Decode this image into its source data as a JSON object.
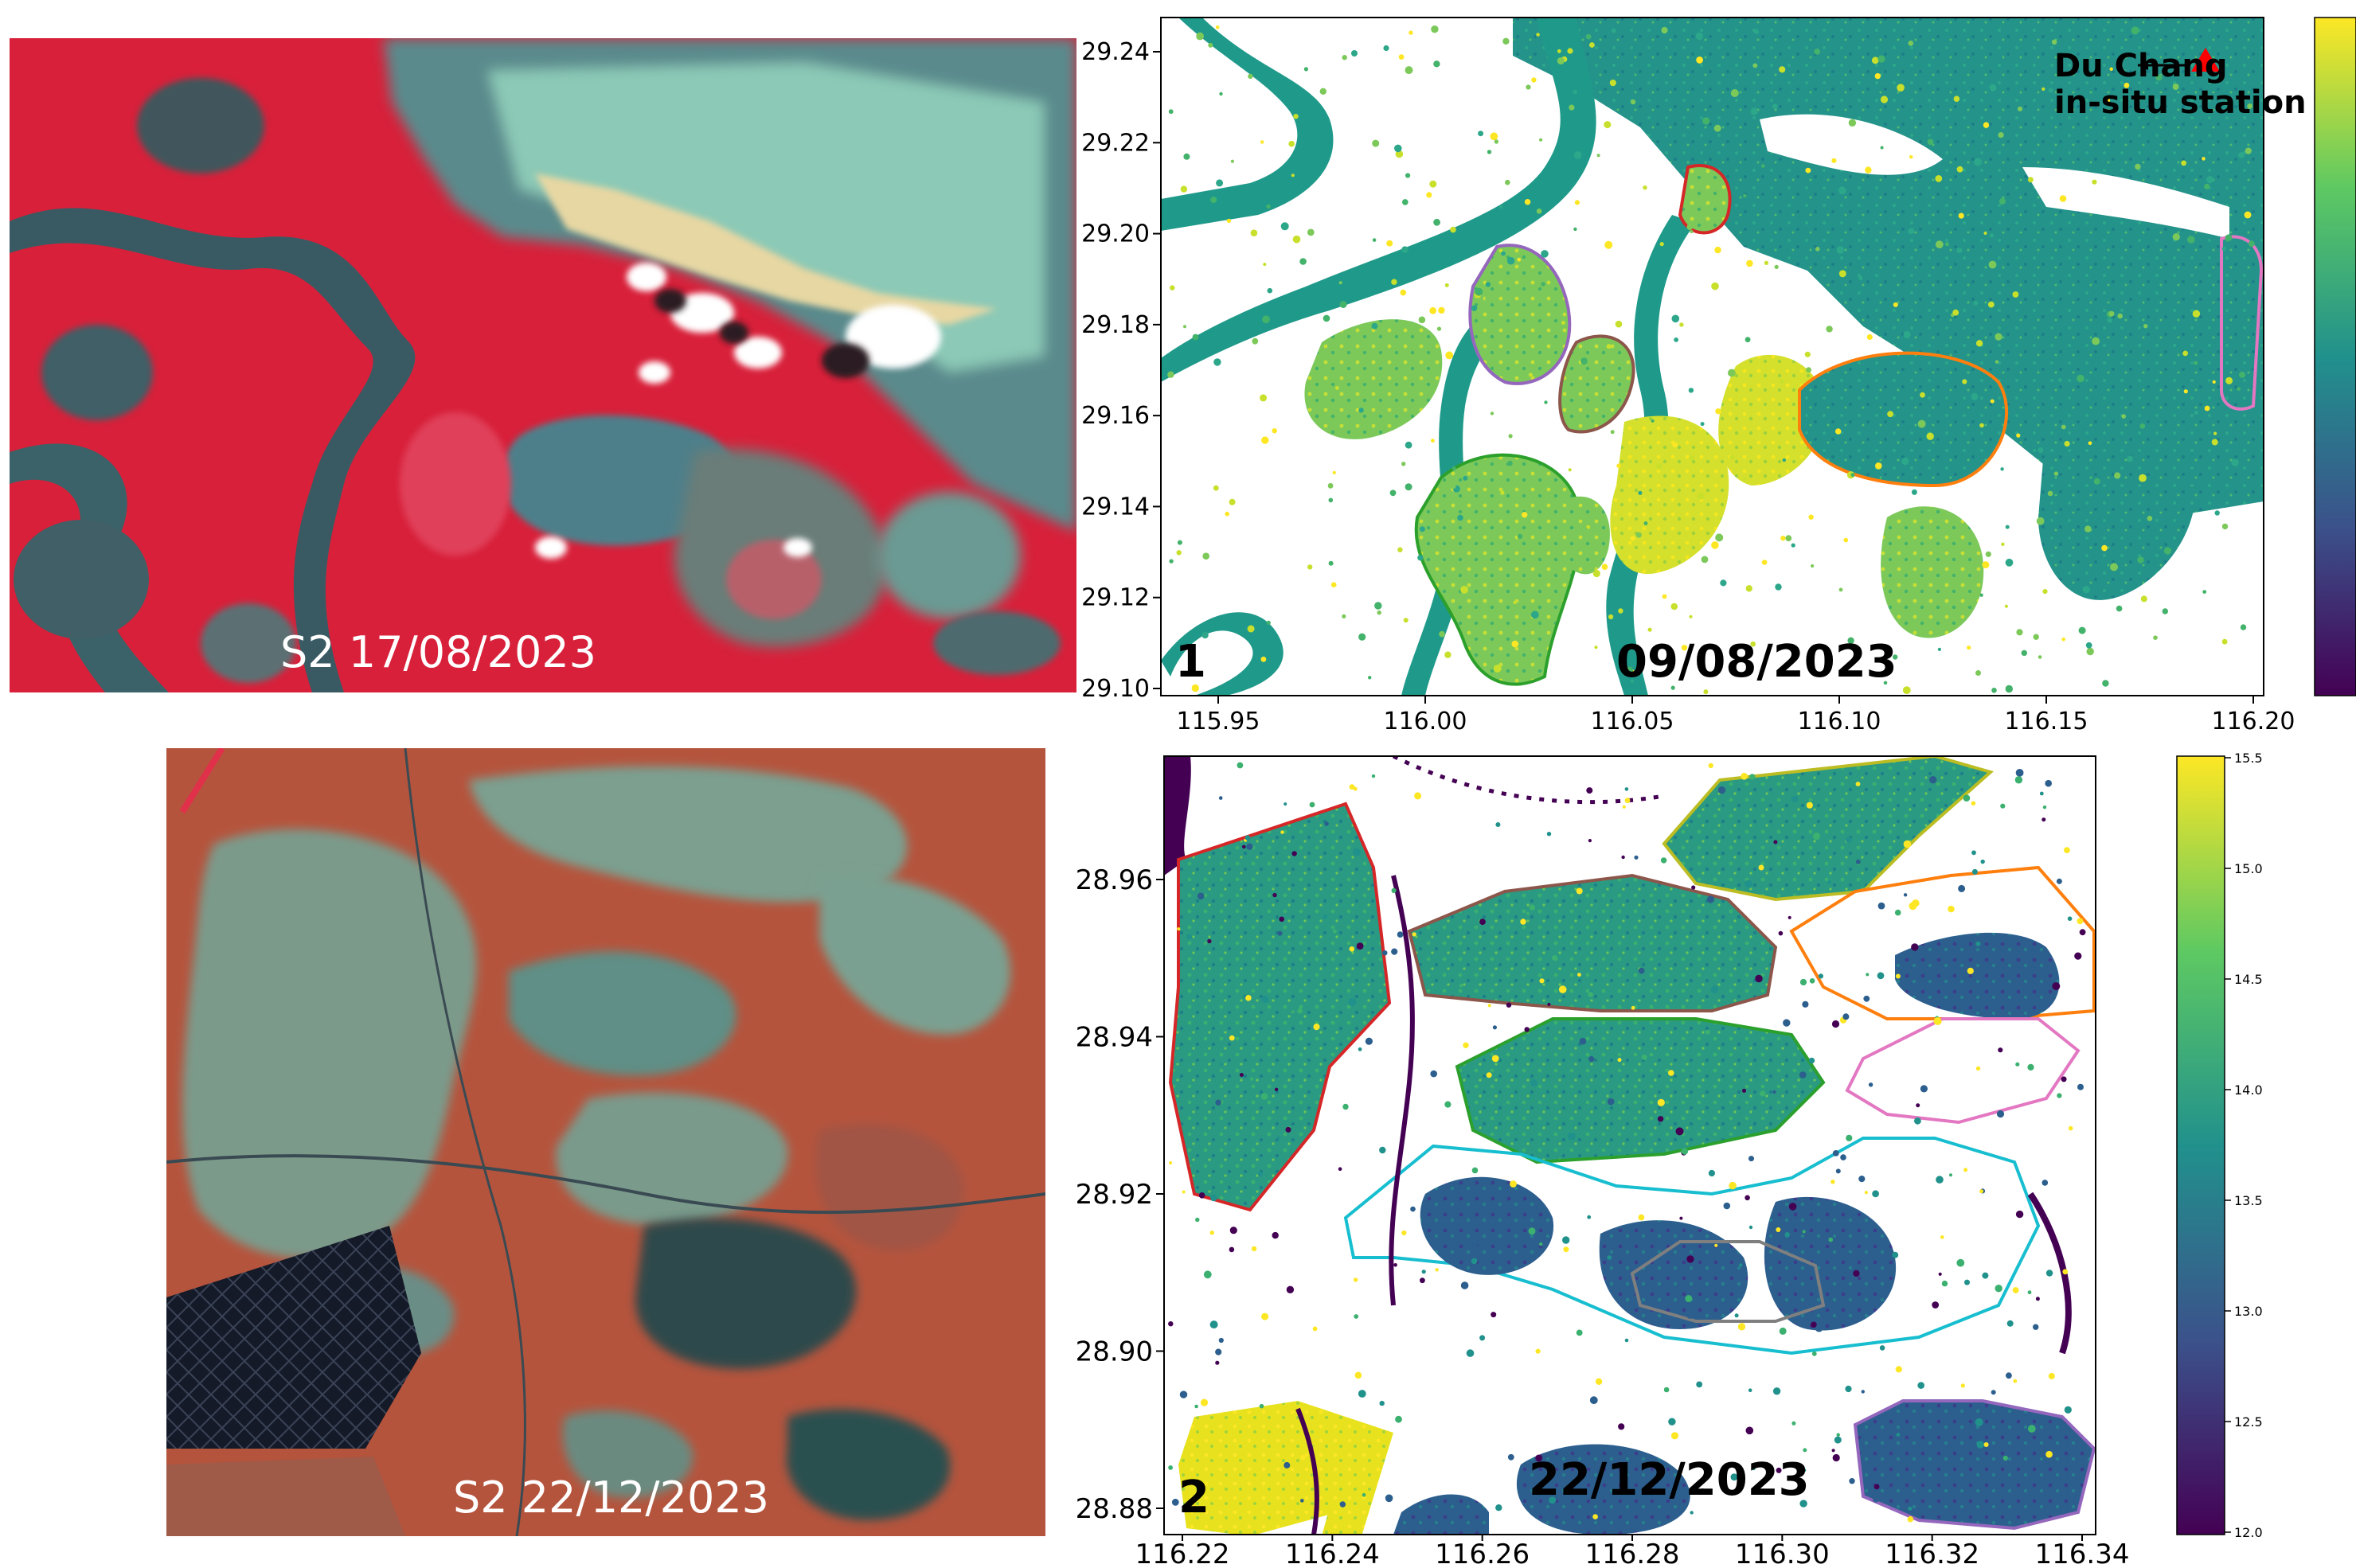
{
  "panels": [
    {
      "id": "top",
      "satellite_label": "S2 17/08/2023",
      "map_date": "09/08/2023",
      "panel_number": "1",
      "station_label_line1": "Du Chang",
      "station_label_line2": "in-situ station",
      "y_ticks": [
        "29.24",
        "29.22",
        "29.20",
        "29.18",
        "29.16",
        "29.14",
        "29.12",
        "29.10"
      ],
      "x_ticks": [
        "115.95",
        "116.00",
        "116.05",
        "116.10",
        "116.15",
        "116.20"
      ]
    },
    {
      "id": "bottom",
      "satellite_label": "S2 22/12/2023",
      "map_date": "22/12/2023",
      "panel_number": "2",
      "y_ticks": [
        "28.96",
        "28.94",
        "28.92",
        "28.90",
        "28.88"
      ],
      "x_ticks": [
        "116.22",
        "116.24",
        "116.26",
        "116.28",
        "116.30",
        "116.32",
        "116.34"
      ],
      "colorbar_ticks": [
        "15.5",
        "15.0",
        "14.5",
        "14.0",
        "13.5",
        "13.0",
        "12.5",
        "12.0"
      ]
    }
  ],
  "colors": {
    "water_teal": "#1f9a8a",
    "viridis_low": "#440154",
    "viridis_mid": "#21918c",
    "viridis_high": "#fde725",
    "station_marker": "#ff0000"
  }
}
